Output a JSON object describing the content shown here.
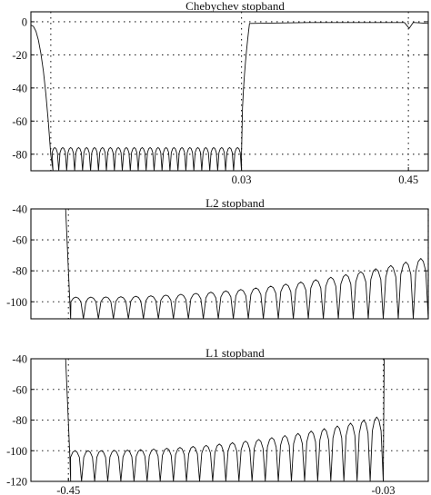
{
  "chart_data": [
    {
      "type": "line",
      "title": "Chebychev stopband",
      "yticks": [
        0,
        -20,
        -40,
        -60,
        -80
      ],
      "ylim": [
        -90,
        6
      ],
      "xlim": [
        -0.5,
        0.5
      ],
      "xticks": [
        0.03,
        0.45
      ],
      "xtick_labels": [
        "0.03",
        "0.45"
      ],
      "vlines": [
        -0.45,
        0.03,
        0.45
      ],
      "hgrid": [
        0,
        -20,
        -40,
        -60,
        -80
      ],
      "passband": [
        [
          -0.5,
          -0.45
        ],
        [
          0.03,
          0.45
        ],
        [
          0.45,
          0.5
        ]
      ],
      "stopband": {
        "range": [
          -0.45,
          0.03
        ],
        "lobes": 24,
        "floor": -90,
        "ripple_top": [
          -76,
          -76
        ]
      },
      "grid": true
    },
    {
      "type": "line",
      "title": "L2 stopband",
      "yticks": [
        -40,
        -60,
        -80,
        -100
      ],
      "ylim": [
        -111,
        -40
      ],
      "xlim": [
        -0.5,
        0.03
      ],
      "xticks": [],
      "xtick_labels": [],
      "vlines": [
        -0.45,
        0.03
      ],
      "hgrid": [
        -40,
        -60,
        -80,
        -100
      ],
      "stopband": {
        "range": [
          -0.45,
          0.03
        ],
        "lobes": 24,
        "floor": -111,
        "ripple_top": [
          -97,
          -72
        ]
      },
      "grid": true
    },
    {
      "type": "line",
      "title": "L1 stopband",
      "yticks": [
        -40,
        -60,
        -80,
        -100,
        -120
      ],
      "ylim": [
        -120,
        -40
      ],
      "xlim": [
        -0.5,
        0.03
      ],
      "xticks": [
        -0.45,
        -0.03
      ],
      "xtick_labels": [
        "-0.45",
        "-0.03"
      ],
      "vlines": [
        -0.45,
        -0.03
      ],
      "hgrid": [
        -40,
        -60,
        -80,
        -100,
        -120
      ],
      "stopband": {
        "range": [
          -0.45,
          -0.03
        ],
        "lobes": 24,
        "floor": -120,
        "ripple_top": [
          -100,
          -78
        ]
      },
      "grid": true
    }
  ]
}
